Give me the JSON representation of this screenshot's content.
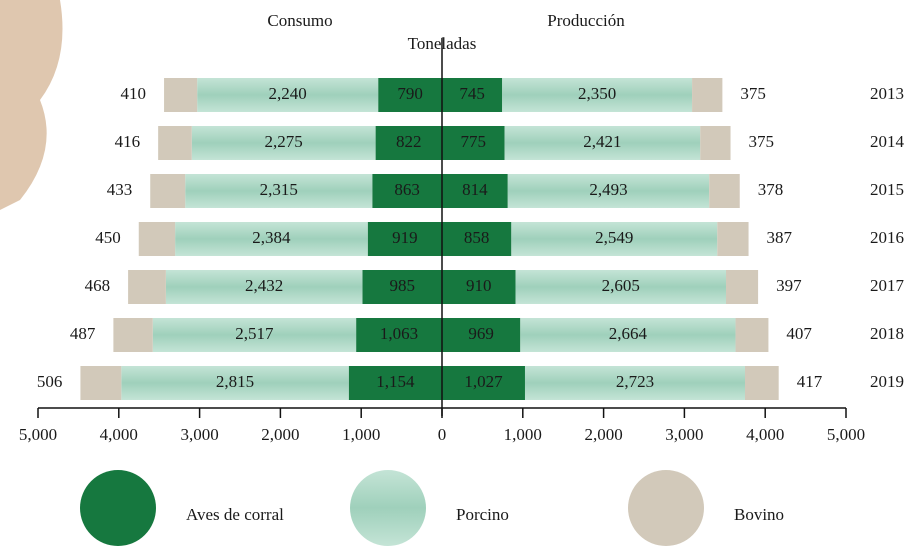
{
  "chart_data": {
    "type": "butterfly",
    "title": "Toneladas",
    "left_title": "Consumo",
    "right_title": "Producción",
    "categories": [
      "2013",
      "2014",
      "2015",
      "2016",
      "2017",
      "2018",
      "2019"
    ],
    "series": [
      {
        "name": "Aves de corral",
        "color": "#16783f",
        "consumo": [
          790,
          822,
          863,
          919,
          985,
          1063,
          1154
        ],
        "consumo_value_labels": [
          "790",
          "822",
          "863",
          "919",
          "985",
          "1,063",
          "1,154"
        ],
        "produccion": [
          745,
          775,
          814,
          858,
          910,
          969,
          1027
        ],
        "produccion_value_labels": [
          "745",
          "775",
          "814",
          "858",
          "910",
          "969",
          "1,027"
        ]
      },
      {
        "name": "Porcino",
        "color": "#a8d5c2",
        "consumo": [
          2240,
          2275,
          2315,
          2384,
          2432,
          2517,
          2815
        ],
        "consumo_value_labels": [
          "2,240",
          "2,275",
          "2,315",
          "2,384",
          "2,432",
          "2,517",
          "2,815"
        ],
        "produccion": [
          2350,
          2421,
          2493,
          2549,
          2605,
          2664,
          2723
        ],
        "produccion_value_labels": [
          "2,350",
          "2,421",
          "2,493",
          "2,549",
          "2,605",
          "2,664",
          "2,723"
        ]
      },
      {
        "name": "Bovino",
        "color": "#d2c9ba",
        "consumo": [
          410,
          416,
          433,
          450,
          468,
          487,
          506
        ],
        "consumo_value_labels": [
          "410",
          "416",
          "433",
          "450",
          "468",
          "487",
          "506"
        ],
        "produccion": [
          375,
          375,
          378,
          387,
          397,
          407,
          417
        ],
        "produccion_value_labels": [
          "375",
          "375",
          "378",
          "387",
          "397",
          "407",
          "417"
        ]
      }
    ],
    "xlim": [
      -5000,
      5000
    ],
    "xticks": [
      {
        "value": -5000,
        "label": "5,000"
      },
      {
        "value": -4000,
        "label": "4,000"
      },
      {
        "value": -3000,
        "label": "3,000"
      },
      {
        "value": -2000,
        "label": "2,000"
      },
      {
        "value": -1000,
        "label": "1,000"
      },
      0,
      {
        "value": 1000,
        "label": "1,000"
      },
      {
        "value": 2000,
        "label": "2,000"
      },
      {
        "value": 3000,
        "label": "3,000"
      },
      {
        "value": 4000,
        "label": "4,000"
      },
      {
        "value": 5000,
        "label": "5,000"
      }
    ]
  }
}
